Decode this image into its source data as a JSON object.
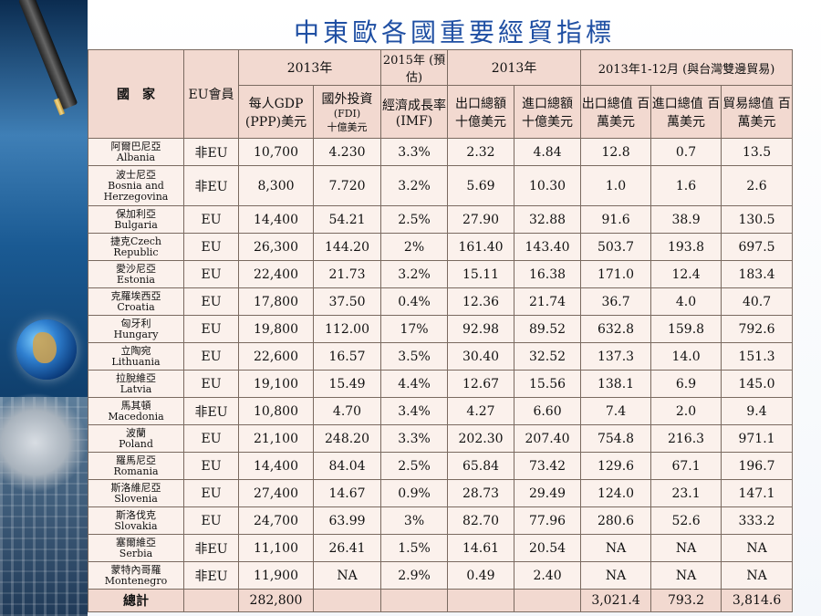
{
  "title": "中東歐各國重要經貿指標",
  "header": {
    "country": "國　家",
    "eu_member": "EU會員",
    "g2013a": "2013年",
    "g2015": "2015年 (預估)",
    "g2013b": "2013年",
    "g2013trade": "2013年1-12月 (與台灣雙邊貿易)",
    "gdp": "每人GDP (PPP)美元",
    "fdi_main": "國外投資",
    "fdi_sub": "(FDI)",
    "fdi_unit": "十億美元",
    "growth": "經濟成長率 (IMF)",
    "exports": "出口總額 十億美元",
    "imports": "進口總額 十億美元",
    "tw_exp": "出口總值 百萬美元",
    "tw_imp": "進口總值 百萬美元",
    "tw_total": "貿易總值 百萬美元"
  },
  "rows": [
    {
      "zh": "阿爾巴尼亞",
      "en": "Albania",
      "eu": "非EU",
      "gdp": "10,700",
      "fdi": "4.230",
      "growth": "3.3%",
      "exp": "2.32",
      "imp": "4.84",
      "twexp": "12.8",
      "twimp": "0.7",
      "twtot": "13.5"
    },
    {
      "zh": "波士尼亞",
      "en": "Bosnia and Herzegovina",
      "eu": "非EU",
      "gdp": "8,300",
      "fdi": "7.720",
      "growth": "3.2%",
      "exp": "5.69",
      "imp": "10.30",
      "twexp": "1.0",
      "twimp": "1.6",
      "twtot": "2.6"
    },
    {
      "zh": "保加利亞",
      "en": "Bulgaria",
      "eu": "EU",
      "gdp": "14,400",
      "fdi": "54.21",
      "growth": "2.5%",
      "exp": "27.90",
      "imp": "32.88",
      "twexp": "91.6",
      "twimp": "38.9",
      "twtot": "130.5"
    },
    {
      "zh": "捷克Czech",
      "en": "Republic",
      "eu": "EU",
      "gdp": "26,300",
      "fdi": "144.20",
      "growth": "2%",
      "exp": "161.40",
      "imp": "143.40",
      "twexp": "503.7",
      "twimp": "193.8",
      "twtot": "697.5"
    },
    {
      "zh": "愛沙尼亞",
      "en": "Estonia",
      "eu": "EU",
      "gdp": "22,400",
      "fdi": "21.73",
      "growth": "3.2%",
      "exp": "15.11",
      "imp": "16.38",
      "twexp": "171.0",
      "twimp": "12.4",
      "twtot": "183.4"
    },
    {
      "zh": "克羅埃西亞",
      "en": "Croatia",
      "eu": "EU",
      "gdp": "17,800",
      "fdi": "37.50",
      "growth": "0.4%",
      "exp": "12.36",
      "imp": "21.74",
      "twexp": "36.7",
      "twimp": "4.0",
      "twtot": "40.7"
    },
    {
      "zh": "匈牙利",
      "en": "Hungary",
      "eu": "EU",
      "gdp": "19,800",
      "fdi": "112.00",
      "growth": "17%",
      "exp": "92.98",
      "imp": "89.52",
      "twexp": "632.8",
      "twimp": "159.8",
      "twtot": "792.6"
    },
    {
      "zh": "立陶宛",
      "en": "Lithuania",
      "eu": "EU",
      "gdp": "22,600",
      "fdi": "16.57",
      "growth": "3.5%",
      "exp": "30.40",
      "imp": "32.52",
      "twexp": "137.3",
      "twimp": "14.0",
      "twtot": "151.3"
    },
    {
      "zh": "拉脫維亞",
      "en": "Latvia",
      "eu": "EU",
      "gdp": "19,100",
      "fdi": "15.49",
      "growth": "4.4%",
      "exp": "12.67",
      "imp": "15.56",
      "twexp": "138.1",
      "twimp": "6.9",
      "twtot": "145.0"
    },
    {
      "zh": "馬其頓",
      "en": "Macedonia",
      "eu": "非EU",
      "gdp": "10,800",
      "fdi": "4.70",
      "growth": "3.4%",
      "exp": "4.27",
      "imp": "6.60",
      "twexp": "7.4",
      "twimp": "2.0",
      "twtot": "9.4"
    },
    {
      "zh": "波蘭",
      "en": "Poland",
      "eu": "EU",
      "gdp": "21,100",
      "fdi": "248.20",
      "growth": "3.3%",
      "exp": "202.30",
      "imp": "207.40",
      "twexp": "754.8",
      "twimp": "216.3",
      "twtot": "971.1"
    },
    {
      "zh": "羅馬尼亞",
      "en": "Romania",
      "eu": "EU",
      "gdp": "14,400",
      "fdi": "84.04",
      "growth": "2.5%",
      "exp": "65.84",
      "imp": "73.42",
      "twexp": "129.6",
      "twimp": "67.1",
      "twtot": "196.7"
    },
    {
      "zh": "斯洛維尼亞",
      "en": "Slovenia",
      "eu": "EU",
      "gdp": "27,400",
      "fdi": "14.67",
      "growth": "0.9%",
      "exp": "28.73",
      "imp": "29.49",
      "twexp": "124.0",
      "twimp": "23.1",
      "twtot": "147.1"
    },
    {
      "zh": "斯洛伐克",
      "en": "Slovakia",
      "eu": "EU",
      "gdp": "24,700",
      "fdi": "63.99",
      "growth": "3%",
      "exp": "82.70",
      "imp": "77.96",
      "twexp": "280.6",
      "twimp": "52.6",
      "twtot": "333.2"
    },
    {
      "zh": "塞爾維亞",
      "en": "Serbia",
      "eu": "非EU",
      "gdp": "11,100",
      "fdi": "26.41",
      "growth": "1.5%",
      "exp": "14.61",
      "imp": "20.54",
      "twexp": "NA",
      "twimp": "NA",
      "twtot": "NA"
    },
    {
      "zh": "蒙特內哥羅",
      "en": "Montenegro",
      "eu": "非EU",
      "gdp": "11,900",
      "fdi": "NA",
      "growth": "2.9%",
      "exp": "0.49",
      "imp": "2.40",
      "twexp": "NA",
      "twimp": "NA",
      "twtot": "NA"
    }
  ],
  "total": {
    "label": "總計",
    "gdp": "282,800",
    "twexp": "3,021.4",
    "twimp": "793.2",
    "twtot": "3,814.6"
  }
}
